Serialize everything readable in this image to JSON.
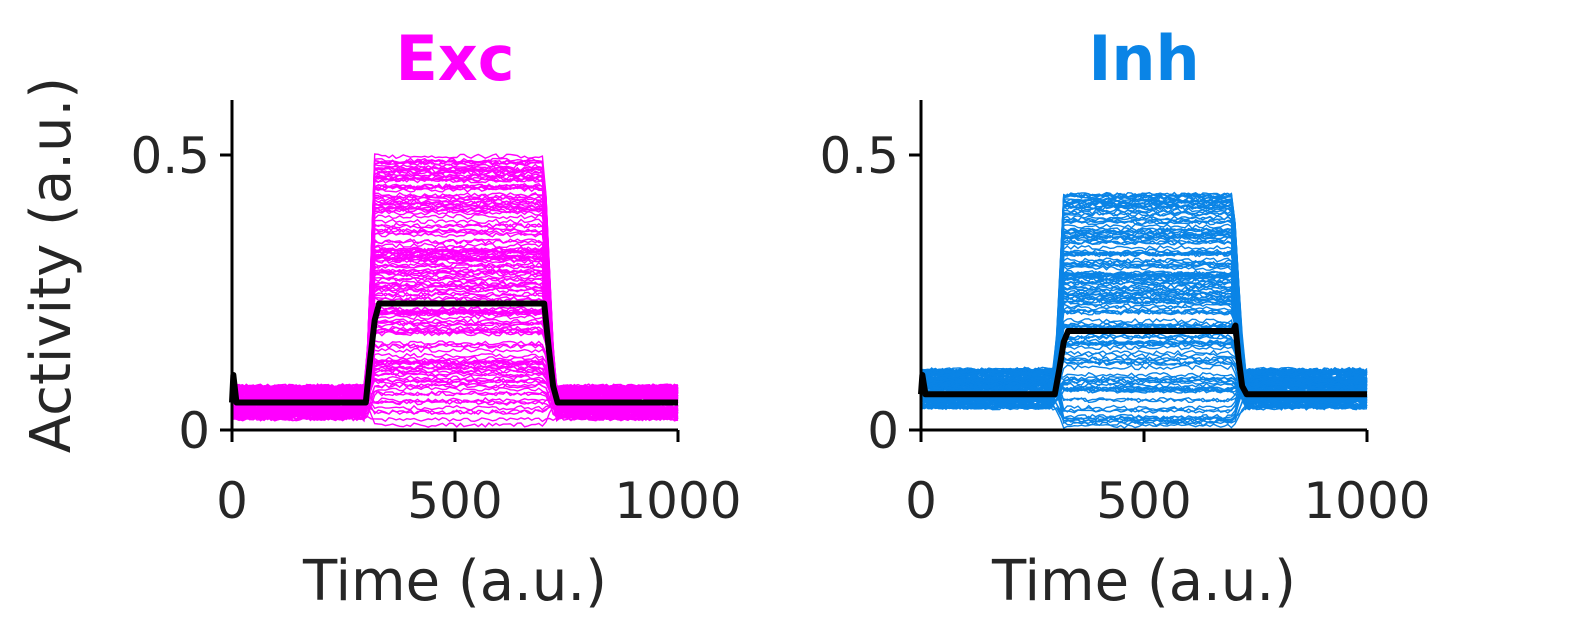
{
  "chart_data": [
    {
      "type": "line",
      "title": "Exc",
      "title_color": "#ff00ff",
      "xlabel": "Time (a.u.)",
      "ylabel": "Activity (a.u.)",
      "xlim": [
        0,
        1000
      ],
      "ylim": [
        0,
        0.6
      ],
      "xticks": [
        {
          "value": 0,
          "label": "0"
        },
        {
          "value": 500,
          "label": "500"
        },
        {
          "value": 1000,
          "label": "1000"
        }
      ],
      "yticks": [
        {
          "value": 0,
          "label": "0"
        },
        {
          "value": 0.5,
          "label": "0.5"
        }
      ],
      "grid": false,
      "trace_color": "#ff00ff",
      "mean_color": "#000000",
      "stimulus_on": 300,
      "stimulus_off": 700,
      "traces": {
        "count": 150,
        "baseline_range": [
          0.02,
          0.08
        ],
        "stimulus_range": [
          0.0,
          0.5
        ]
      },
      "mean": {
        "x": [
          0,
          3,
          10,
          300,
          310,
          320,
          330,
          700,
          710,
          720,
          730,
          1000
        ],
        "y": [
          0.05,
          0.1,
          0.05,
          0.05,
          0.13,
          0.2,
          0.23,
          0.23,
          0.15,
          0.08,
          0.05,
          0.05
        ]
      }
    },
    {
      "type": "line",
      "title": "Inh",
      "title_color": "#0a84e6",
      "xlabel": "Time (a.u.)",
      "ylabel": "",
      "xlim": [
        0,
        1000
      ],
      "ylim": [
        0,
        0.6
      ],
      "xticks": [
        {
          "value": 0,
          "label": "0"
        },
        {
          "value": 500,
          "label": "500"
        },
        {
          "value": 1000,
          "label": "1000"
        }
      ],
      "yticks": [
        {
          "value": 0,
          "label": "0"
        },
        {
          "value": 0.5,
          "label": "0.5"
        }
      ],
      "grid": false,
      "trace_color": "#0a84e6",
      "mean_color": "#000000",
      "stimulus_on": 300,
      "stimulus_off": 700,
      "traces": {
        "count": 150,
        "baseline_range": [
          0.04,
          0.11
        ],
        "stimulus_range": [
          0.0,
          0.43
        ]
      },
      "mean": {
        "x": [
          0,
          3,
          10,
          300,
          310,
          320,
          330,
          700,
          705,
          712,
          720,
          730,
          1000
        ],
        "y": [
          0.065,
          0.1,
          0.065,
          0.065,
          0.11,
          0.16,
          0.18,
          0.18,
          0.19,
          0.13,
          0.08,
          0.065,
          0.065
        ]
      }
    }
  ]
}
